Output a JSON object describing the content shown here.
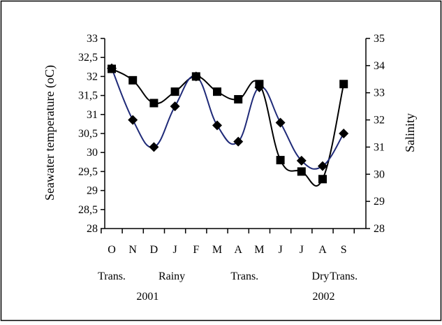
{
  "chart_data": {
    "type": "line",
    "categories": [
      "O",
      "N",
      "D",
      "J",
      "F",
      "M",
      "A",
      "M",
      "J",
      "J",
      "A",
      "S"
    ],
    "y_left": {
      "label": "Seawater temperature (oC)",
      "ylim": [
        28,
        33
      ],
      "ticks": [
        "28",
        "28,5",
        "29",
        "29,5",
        "30",
        "30,5",
        "31",
        "31,5",
        "32",
        "32,5",
        "33"
      ],
      "tick_values": [
        28,
        28.5,
        29,
        29.5,
        30,
        30.5,
        31,
        31.5,
        32,
        32.5,
        33
      ]
    },
    "y_right": {
      "label": "Salinity",
      "ylim": [
        28,
        35
      ],
      "ticks": [
        "28",
        "29",
        "30",
        "31",
        "32",
        "33",
        "34",
        "35"
      ],
      "tick_values": [
        28,
        29,
        30,
        31,
        32,
        33,
        34,
        35
      ]
    },
    "series": [
      {
        "axis": "left",
        "marker": "square",
        "color": "#000000",
        "values": [
          32.2,
          31.9,
          31.3,
          31.6,
          32.0,
          31.6,
          31.4,
          31.8,
          29.8,
          29.5,
          29.3,
          31.8
        ]
      },
      {
        "axis": "right",
        "marker": "diamond",
        "color": "#1f2a78",
        "values": [
          33.9,
          32.0,
          31.0,
          32.5,
          33.6,
          31.8,
          31.2,
          33.2,
          31.9,
          30.5,
          30.3,
          31.5
        ]
      }
    ],
    "season_labels": [
      {
        "text": "Trans.",
        "at": 0
      },
      {
        "text": "Rainy",
        "at": 2.85
      },
      {
        "text": "Trans.",
        "at": 6.3
      },
      {
        "text": "Dry",
        "at": 9.9
      },
      {
        "text": "Trans.",
        "at": 11.0
      }
    ],
    "year_labels": [
      {
        "text": "2001",
        "at": 1.7
      },
      {
        "text": "2002",
        "at": 10.05
      }
    ],
    "grid": false,
    "legend": "none"
  }
}
